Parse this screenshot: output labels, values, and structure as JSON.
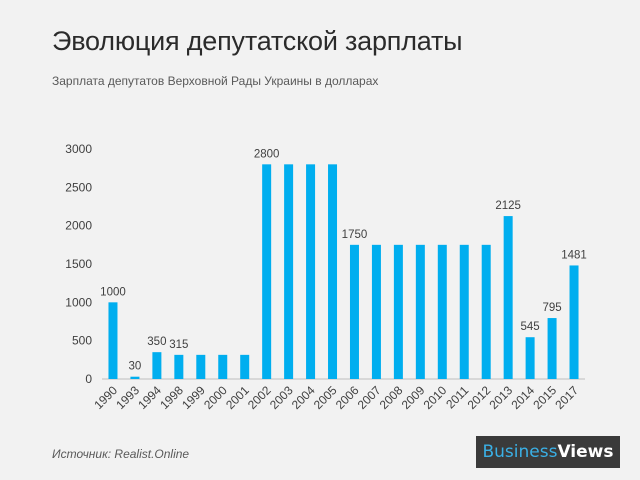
{
  "header": {
    "title": "Эволюция депутатской зарплаты",
    "subtitle": "Зарплата  депутатов Верховной Рады Украины в долларах"
  },
  "footer": {
    "source": "Источник: Realist.Online",
    "brand_part1": "Business",
    "brand_part2": "Views"
  },
  "colors": {
    "bar": "#00aeef",
    "axis": "#bfbfbf",
    "tick_text": "#404040",
    "label_text": "#404040"
  },
  "chart_data": {
    "type": "bar",
    "title": "Эволюция депутатской зарплаты",
    "subtitle": "Зарплата  депутатов Верховной Рады Украины в долларах",
    "xlabel": "",
    "ylabel": "",
    "ylim": [
      0,
      3000
    ],
    "yticks": [
      0,
      500,
      1000,
      1500,
      2000,
      2500,
      3000
    ],
    "grid": false,
    "legend": "none",
    "categories": [
      "1990",
      "1993",
      "1994",
      "1998",
      "1999",
      "2000",
      "2001",
      "2002",
      "2003",
      "2004",
      "2005",
      "2006",
      "2007",
      "2008",
      "2009",
      "2010",
      "2011",
      "2012",
      "2013",
      "2014",
      "2015",
      "2017"
    ],
    "values": [
      1000,
      30,
      350,
      315,
      315,
      315,
      315,
      2800,
      2800,
      2800,
      2800,
      1750,
      1750,
      1750,
      1750,
      1750,
      1750,
      1750,
      2125,
      545,
      795,
      1481
    ],
    "data_labels": [
      "1000",
      "30",
      "350",
      "315",
      "",
      "",
      "",
      "2800",
      "",
      "",
      "",
      "1750",
      "",
      "",
      "",
      "",
      "",
      "",
      "2125",
      "545",
      "795",
      "1481"
    ]
  }
}
